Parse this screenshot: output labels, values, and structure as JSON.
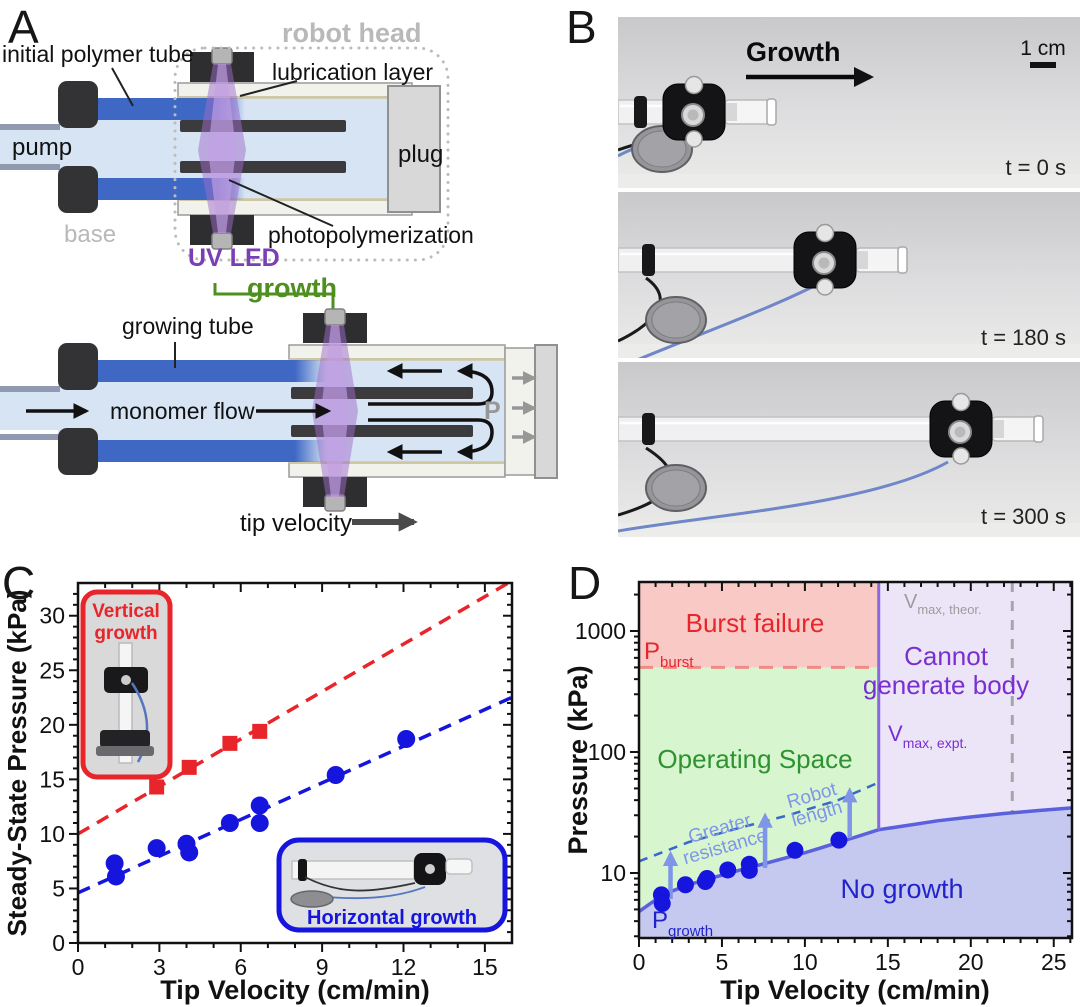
{
  "figure": {
    "panel_labels": {
      "a": "A",
      "b": "B",
      "c": "C",
      "d": "D"
    }
  },
  "panel_a": {
    "labels": {
      "robot_head": "robot head",
      "initial_polymer_tube": "initial polymer tube",
      "lubrication_layer": "lubrication layer",
      "pump": "pump",
      "plug": "plug",
      "base": "base",
      "uv_led": "UV LED",
      "photopolymerization": "photopolymerization",
      "growth": "growth",
      "growing_tube": "growing tube",
      "monomer_flow": "monomer flow",
      "pressure": "P",
      "tip_velocity": "tip velocity"
    },
    "colors": {
      "tube_blue": "#3f68c5",
      "fluid_blue": "#d6e4f4",
      "uv_purple": "#9d6cc9",
      "growth_green": "#4e8f1f",
      "gray_text": "#b9b9b9",
      "uv_text": "#7a3fb5"
    }
  },
  "panel_b": {
    "growth_label": "Growth",
    "scale_bar": "1 cm",
    "frames": [
      {
        "time": "t = 0 s"
      },
      {
        "time": "t = 180 s"
      },
      {
        "time": "t = 300 s"
      }
    ]
  },
  "panel_c": {
    "chart_data": {
      "type": "scatter",
      "xlabel": "Tip Velocity (cm/min)",
      "ylabel": "Steady-State Pressure (kPa)",
      "xlim": [
        0,
        16
      ],
      "ylim": [
        0,
        33
      ],
      "xticks": [
        0,
        3,
        6,
        9,
        12,
        15
      ],
      "yticks": [
        0,
        5,
        10,
        15,
        20,
        25,
        30
      ],
      "grid": false,
      "series": [
        {
          "name": "Vertical growth",
          "marker": "square",
          "color": "#e8252a",
          "points": [
            [
              2.9,
              14.3
            ],
            [
              4.1,
              16.1
            ],
            [
              5.6,
              18.3
            ],
            [
              6.7,
              19.4
            ]
          ],
          "fit_line": {
            "intercept": 10.0,
            "slope": 1.45,
            "style": "dashed"
          }
        },
        {
          "name": "Horizontal growth",
          "marker": "circle",
          "color": "#1515dd",
          "points": [
            [
              1.35,
              7.3
            ],
            [
              1.4,
              6.1
            ],
            [
              2.9,
              8.7
            ],
            [
              4.0,
              9.1
            ],
            [
              4.1,
              8.3
            ],
            [
              5.6,
              11.0
            ],
            [
              6.7,
              12.6
            ],
            [
              6.7,
              11.0
            ],
            [
              9.5,
              15.4
            ],
            [
              12.1,
              18.7
            ]
          ],
          "fit_line": {
            "intercept": 4.6,
            "slope": 1.12,
            "style": "dashed"
          }
        }
      ]
    },
    "insets": {
      "vertical": {
        "lines": [
          "Vertical",
          "growth"
        ],
        "color": "#e8252a"
      },
      "horizontal": {
        "label": "Horizontal growth",
        "color": "#1515dd"
      }
    }
  },
  "panel_d": {
    "chart_data": {
      "type": "phase-diagram",
      "xlabel": "Tip Velocity (cm/min)",
      "ylabel": "Pressure (kPa)",
      "xlim": [
        0,
        26.1
      ],
      "ylim_log": [
        2.9,
        2540
      ],
      "xticks": [
        0,
        5,
        10,
        15,
        20,
        25
      ],
      "yticks": [
        10,
        100,
        1000
      ],
      "p_burst_kpa": 500,
      "v_max_expt_cm_min": 14.45,
      "v_max_theor_cm_min": 22.5,
      "growth_curve": [
        [
          0,
          4.8
        ],
        [
          1,
          6.0
        ],
        [
          2,
          7.1
        ],
        [
          3,
          8.0
        ],
        [
          4,
          8.8
        ],
        [
          5,
          9.6
        ],
        [
          6,
          10.5
        ],
        [
          7,
          11.4
        ],
        [
          8,
          12.4
        ],
        [
          9,
          13.5
        ],
        [
          10,
          14.7
        ],
        [
          11,
          16.2
        ],
        [
          12,
          17.9
        ],
        [
          13,
          19.7
        ],
        [
          14.45,
          22.8
        ],
        [
          16,
          24.5
        ],
        [
          18,
          27.0
        ],
        [
          20,
          29.0
        ],
        [
          22,
          31.0
        ],
        [
          24,
          32.8
        ],
        [
          26.1,
          34.5
        ]
      ],
      "resistance_curve": [
        [
          0,
          12.5
        ],
        [
          3,
          18
        ],
        [
          6,
          23.5
        ],
        [
          9,
          30
        ],
        [
          12,
          40
        ],
        [
          14.45,
          56
        ]
      ],
      "data_points": [
        [
          1.35,
          6.6
        ],
        [
          1.4,
          5.6
        ],
        [
          2.8,
          8.0
        ],
        [
          4.0,
          8.5
        ],
        [
          4.1,
          9.0
        ],
        [
          5.35,
          10.6
        ],
        [
          6.65,
          11.8
        ],
        [
          6.65,
          10.5
        ],
        [
          9.4,
          15.4
        ],
        [
          12.05,
          18.7
        ]
      ],
      "arrows": [
        {
          "x": 1.9,
          "p_from": 6.1,
          "p_to": 14.0
        },
        {
          "x": 7.6,
          "p_from": 11.0,
          "p_to": 29.0
        },
        {
          "x": 12.7,
          "p_from": 19.5,
          "p_to": 47.0
        }
      ],
      "regions": {
        "burst": "Burst failure",
        "operating": "Operating Space",
        "cannot": [
          "Cannot",
          "generate body"
        ],
        "no_growth": "No growth"
      }
    },
    "labels": {
      "p_burst": {
        "main": "P",
        "sub": "burst"
      },
      "p_growth": {
        "main": "P",
        "sub": "growth"
      },
      "v_expt": {
        "main": "V",
        "sub": "max, expt."
      },
      "v_theor": {
        "main": "V",
        "sub": "max, theor."
      },
      "greater_resistance": [
        "Greater",
        "resistance"
      ],
      "robot_length": [
        "Robot",
        "length"
      ]
    },
    "colors": {
      "burst_fill": "#f9c9c6",
      "operating_fill": "#d7f5cf",
      "cannot_fill": "#ece5f8",
      "no_growth_fill": "#c5c8ef",
      "boundary": "#5b60dd",
      "p_burst_line": "#ef8a85",
      "v_expt_line": "#8a67dd",
      "v_theor_line": "#a6a6a6",
      "points": "#1515dd",
      "arrows": "#7f95e8",
      "resistance_line": "#3968c8",
      "burst_text": "#e8252a",
      "operating_text": "#2e9230",
      "cannot_text": "#7a2fd0",
      "no_growth_text": "#2323cc"
    }
  }
}
